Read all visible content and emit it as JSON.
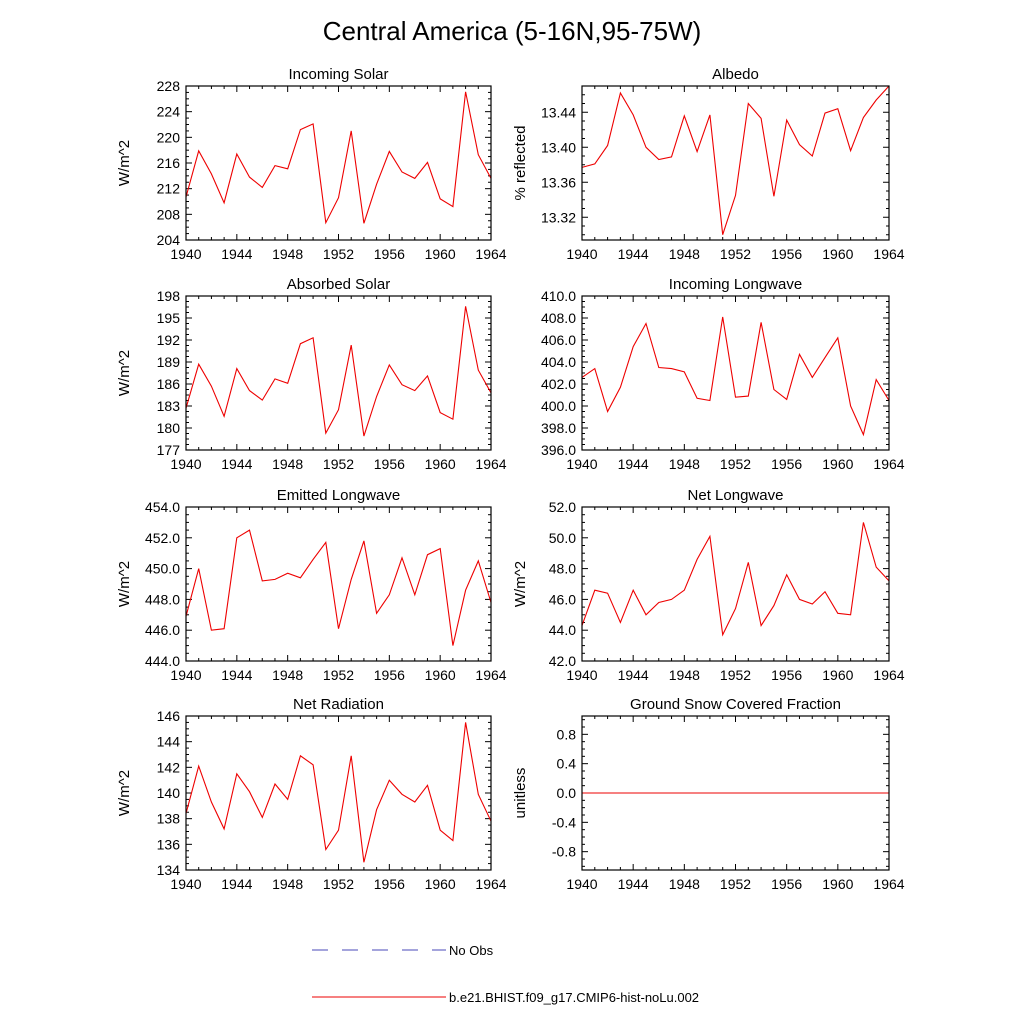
{
  "figure": {
    "title": "Central America (5-16N,95-75W)"
  },
  "legend": {
    "items": [
      {
        "label": "No Obs",
        "color": "#4a4ab8",
        "style": "dashed"
      },
      {
        "label": "b.e21.BHIST.f09_g17.CMIP6-hist-noLu.002",
        "color": "#ee0000",
        "style": "solid"
      }
    ]
  },
  "chart_data": [
    {
      "type": "line",
      "title": "Incoming Solar",
      "ylabel": "W/m^2",
      "xlim": [
        1940,
        1964
      ],
      "ylim": [
        204,
        228
      ],
      "xticks": [
        "1940",
        "1944",
        "1948",
        "1952",
        "1956",
        "1960",
        "1964"
      ],
      "yticks": [
        "204",
        "208",
        "212",
        "216",
        "220",
        "224",
        "228"
      ],
      "x": [
        1940,
        1941,
        1942,
        1943,
        1944,
        1945,
        1946,
        1947,
        1948,
        1949,
        1950,
        1951,
        1952,
        1953,
        1954,
        1955,
        1956,
        1957,
        1958,
        1959,
        1960,
        1961,
        1962,
        1963,
        1964
      ],
      "series": [
        {
          "name": "b.e21.BHIST.f09_g17.CMIP6-hist-noLu.002",
          "color": "#ee0000",
          "values": [
            210.7,
            217.9,
            214.3,
            209.8,
            217.4,
            213.8,
            212.2,
            215.6,
            215.1,
            221.2,
            222.1,
            206.7,
            210.6,
            221.0,
            206.6,
            212.7,
            217.8,
            214.6,
            213.6,
            216.1,
            210.4,
            209.2,
            227.1,
            217.3,
            213.6
          ]
        }
      ]
    },
    {
      "type": "line",
      "title": "Albedo",
      "ylabel": "% reflected",
      "xlim": [
        1940,
        1964
      ],
      "ylim": [
        13.294,
        13.47
      ],
      "xticks": [
        "1940",
        "1944",
        "1948",
        "1952",
        "1956",
        "1960",
        "1964"
      ],
      "yticks": [
        "13.32",
        "13.36",
        "13.40",
        "13.44"
      ],
      "x": [
        1940,
        1941,
        1942,
        1943,
        1944,
        1945,
        1946,
        1947,
        1948,
        1949,
        1950,
        1951,
        1952,
        1953,
        1954,
        1955,
        1956,
        1957,
        1958,
        1959,
        1960,
        1961,
        1962,
        1963,
        1964
      ],
      "series": [
        {
          "name": "b.e21.BHIST.f09_g17.CMIP6-hist-noLu.002",
          "color": "#ee0000",
          "values": [
            13.377,
            13.381,
            13.402,
            13.462,
            13.437,
            13.4,
            13.386,
            13.389,
            13.436,
            13.395,
            13.437,
            13.3,
            13.345,
            13.45,
            13.433,
            13.344,
            13.431,
            13.403,
            13.39,
            13.439,
            13.444,
            13.396,
            13.434,
            13.454,
            13.47
          ]
        }
      ]
    },
    {
      "type": "line",
      "title": "Absorbed Solar",
      "ylabel": "W/m^2",
      "xlim": [
        1940,
        1964
      ],
      "ylim": [
        177,
        198
      ],
      "xticks": [
        "1940",
        "1944",
        "1948",
        "1952",
        "1956",
        "1960",
        "1964"
      ],
      "yticks": [
        "177",
        "180",
        "183",
        "186",
        "189",
        "192",
        "195",
        "198"
      ],
      "x": [
        1940,
        1941,
        1942,
        1943,
        1944,
        1945,
        1946,
        1947,
        1948,
        1949,
        1950,
        1951,
        1952,
        1953,
        1954,
        1955,
        1956,
        1957,
        1958,
        1959,
        1960,
        1961,
        1962,
        1963,
        1964
      ],
      "series": [
        {
          "name": "b.e21.BHIST.f09_g17.CMIP6-hist-noLu.002",
          "color": "#ee0000",
          "values": [
            182.7,
            188.7,
            185.7,
            181.6,
            188.1,
            185.1,
            183.8,
            186.7,
            186.1,
            191.5,
            192.3,
            179.3,
            182.5,
            191.3,
            178.9,
            184.3,
            188.6,
            185.9,
            185.1,
            187.1,
            182.1,
            181.2,
            196.6,
            187.9,
            184.8
          ]
        }
      ]
    },
    {
      "type": "line",
      "title": "Incoming Longwave",
      "ylabel": "",
      "xlim": [
        1940,
        1964
      ],
      "ylim": [
        396,
        410
      ],
      "xticks": [
        "1940",
        "1944",
        "1948",
        "1952",
        "1956",
        "1960",
        "1964"
      ],
      "yticks": [
        "396.0",
        "398.0",
        "400.0",
        "402.0",
        "404.0",
        "406.0",
        "408.0",
        "410.0"
      ],
      "x": [
        1940,
        1941,
        1942,
        1943,
        1944,
        1945,
        1946,
        1947,
        1948,
        1949,
        1950,
        1951,
        1952,
        1953,
        1954,
        1955,
        1956,
        1957,
        1958,
        1959,
        1960,
        1961,
        1962,
        1963,
        1964
      ],
      "series": [
        {
          "name": "b.e21.BHIST.f09_g17.CMIP6-hist-noLu.002",
          "color": "#ee0000",
          "values": [
            402.6,
            403.4,
            399.5,
            401.7,
            405.4,
            407.5,
            403.5,
            403.4,
            403.1,
            400.7,
            400.5,
            408.1,
            400.8,
            400.9,
            407.6,
            401.5,
            400.6,
            404.7,
            402.6,
            404.4,
            406.2,
            400.0,
            397.4,
            402.4,
            400.5
          ]
        }
      ]
    },
    {
      "type": "line",
      "title": "Emitted Longwave",
      "ylabel": "W/m^2",
      "xlim": [
        1940,
        1964
      ],
      "ylim": [
        444,
        454
      ],
      "xticks": [
        "1940",
        "1944",
        "1948",
        "1952",
        "1956",
        "1960",
        "1964"
      ],
      "yticks": [
        "444.0",
        "446.0",
        "448.0",
        "450.0",
        "452.0",
        "454.0"
      ],
      "x": [
        1940,
        1941,
        1942,
        1943,
        1944,
        1945,
        1946,
        1947,
        1948,
        1949,
        1950,
        1951,
        1952,
        1953,
        1954,
        1955,
        1956,
        1957,
        1958,
        1959,
        1960,
        1961,
        1962,
        1963,
        1964
      ],
      "series": [
        {
          "name": "b.e21.BHIST.f09_g17.CMIP6-hist-noLu.002",
          "color": "#ee0000",
          "values": [
            446.9,
            450.0,
            446.0,
            446.1,
            452.0,
            452.5,
            449.2,
            449.3,
            449.7,
            449.4,
            450.6,
            451.7,
            446.1,
            449.3,
            451.8,
            447.1,
            448.3,
            450.7,
            448.3,
            450.9,
            451.3,
            445.0,
            448.6,
            450.5,
            447.8
          ]
        }
      ]
    },
    {
      "type": "line",
      "title": "Net Longwave",
      "ylabel": "W/m^2",
      "xlim": [
        1940,
        1964
      ],
      "ylim": [
        42,
        52
      ],
      "xticks": [
        "1940",
        "1944",
        "1948",
        "1952",
        "1956",
        "1960",
        "1964"
      ],
      "yticks": [
        "42.0",
        "44.0",
        "46.0",
        "48.0",
        "50.0",
        "52.0"
      ],
      "x": [
        1940,
        1941,
        1942,
        1943,
        1944,
        1945,
        1946,
        1947,
        1948,
        1949,
        1950,
        1951,
        1952,
        1953,
        1954,
        1955,
        1956,
        1957,
        1958,
        1959,
        1960,
        1961,
        1962,
        1963,
        1964
      ],
      "series": [
        {
          "name": "b.e21.BHIST.f09_g17.CMIP6-hist-noLu.002",
          "color": "#ee0000",
          "values": [
            44.3,
            46.6,
            46.4,
            44.5,
            46.6,
            45.0,
            45.8,
            46.0,
            46.6,
            48.6,
            50.1,
            43.7,
            45.4,
            48.4,
            44.3,
            45.6,
            47.6,
            46.0,
            45.7,
            46.5,
            45.1,
            45.0,
            51.0,
            48.1,
            47.2
          ]
        }
      ]
    },
    {
      "type": "line",
      "title": "Net Radiation",
      "ylabel": "W/m^2",
      "xlim": [
        1940,
        1964
      ],
      "ylim": [
        134,
        146
      ],
      "xticks": [
        "1940",
        "1944",
        "1948",
        "1952",
        "1956",
        "1960",
        "1964"
      ],
      "yticks": [
        "134",
        "136",
        "138",
        "140",
        "142",
        "144",
        "146"
      ],
      "x": [
        1940,
        1941,
        1942,
        1943,
        1944,
        1945,
        1946,
        1947,
        1948,
        1949,
        1950,
        1951,
        1952,
        1953,
        1954,
        1955,
        1956,
        1957,
        1958,
        1959,
        1960,
        1961,
        1962,
        1963,
        1964
      ],
      "series": [
        {
          "name": "b.e21.BHIST.f09_g17.CMIP6-hist-noLu.002",
          "color": "#ee0000",
          "values": [
            138.4,
            142.1,
            139.3,
            137.2,
            141.5,
            140.1,
            138.1,
            140.7,
            139.5,
            142.9,
            142.2,
            135.6,
            137.1,
            142.9,
            134.6,
            138.7,
            141.0,
            139.9,
            139.3,
            140.6,
            137.1,
            136.3,
            145.5,
            139.9,
            137.8
          ]
        }
      ]
    },
    {
      "type": "line",
      "title": "Ground Snow Covered Fraction",
      "ylabel": "unitless",
      "xlim": [
        1940,
        1964
      ],
      "ylim": [
        -1.05,
        1.05
      ],
      "xticks": [
        "1940",
        "1944",
        "1948",
        "1952",
        "1956",
        "1960",
        "1964"
      ],
      "yticks": [
        "-0.8",
        "-0.4",
        "0.0",
        "0.4",
        "0.8"
      ],
      "x": [
        1940,
        1941,
        1942,
        1943,
        1944,
        1945,
        1946,
        1947,
        1948,
        1949,
        1950,
        1951,
        1952,
        1953,
        1954,
        1955,
        1956,
        1957,
        1958,
        1959,
        1960,
        1961,
        1962,
        1963,
        1964
      ],
      "series": [
        {
          "name": "b.e21.BHIST.f09_g17.CMIP6-hist-noLu.002",
          "color": "#ee0000",
          "values": [
            0,
            0,
            0,
            0,
            0,
            0,
            0,
            0,
            0,
            0,
            0,
            0,
            0,
            0,
            0,
            0,
            0,
            0,
            0,
            0,
            0,
            0,
            0,
            0,
            0
          ]
        }
      ]
    }
  ]
}
